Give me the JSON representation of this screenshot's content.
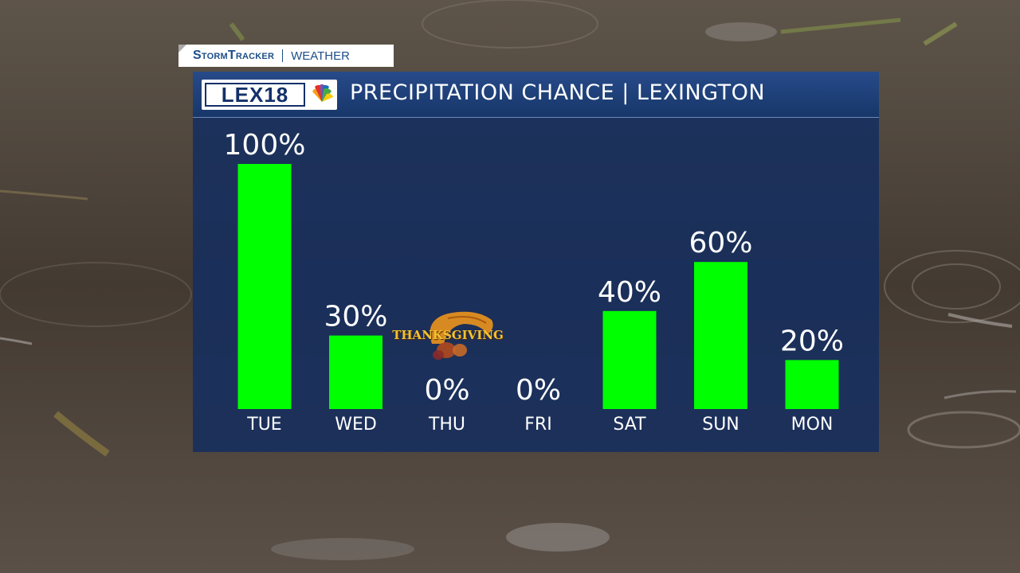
{
  "branding": {
    "tag_brand": "StormTracker",
    "tag_section": "WEATHER",
    "logo_text": "LEX18",
    "logo_colors": {
      "navy": "#13306a",
      "peacock": [
        "#f6a01a",
        "#e4312b",
        "#8d4e9f",
        "#1b6fc2",
        "#4aa84a",
        "#fccb0b"
      ]
    }
  },
  "title": "PRECIPITATION CHANCE | LEXINGTON",
  "annotation": {
    "label": "THANKSGIVING",
    "icon": "cornucopia-icon",
    "day": "THU"
  },
  "colors": {
    "bar": "#00ff00",
    "panel": "#14305f",
    "text": "#ffffff"
  },
  "chart_data": {
    "type": "bar",
    "categories": [
      "TUE",
      "WED",
      "THU",
      "FRI",
      "SAT",
      "SUN",
      "MON"
    ],
    "values": [
      100,
      30,
      0,
      0,
      40,
      60,
      20
    ],
    "data_labels": [
      "100%",
      "30%",
      "0%",
      "0%",
      "40%",
      "60%",
      "20%"
    ],
    "title": "PRECIPITATION CHANCE | LEXINGTON",
    "xlabel": "",
    "ylabel": "",
    "ylim": [
      0,
      100
    ],
    "grid": false,
    "legend": "none"
  }
}
